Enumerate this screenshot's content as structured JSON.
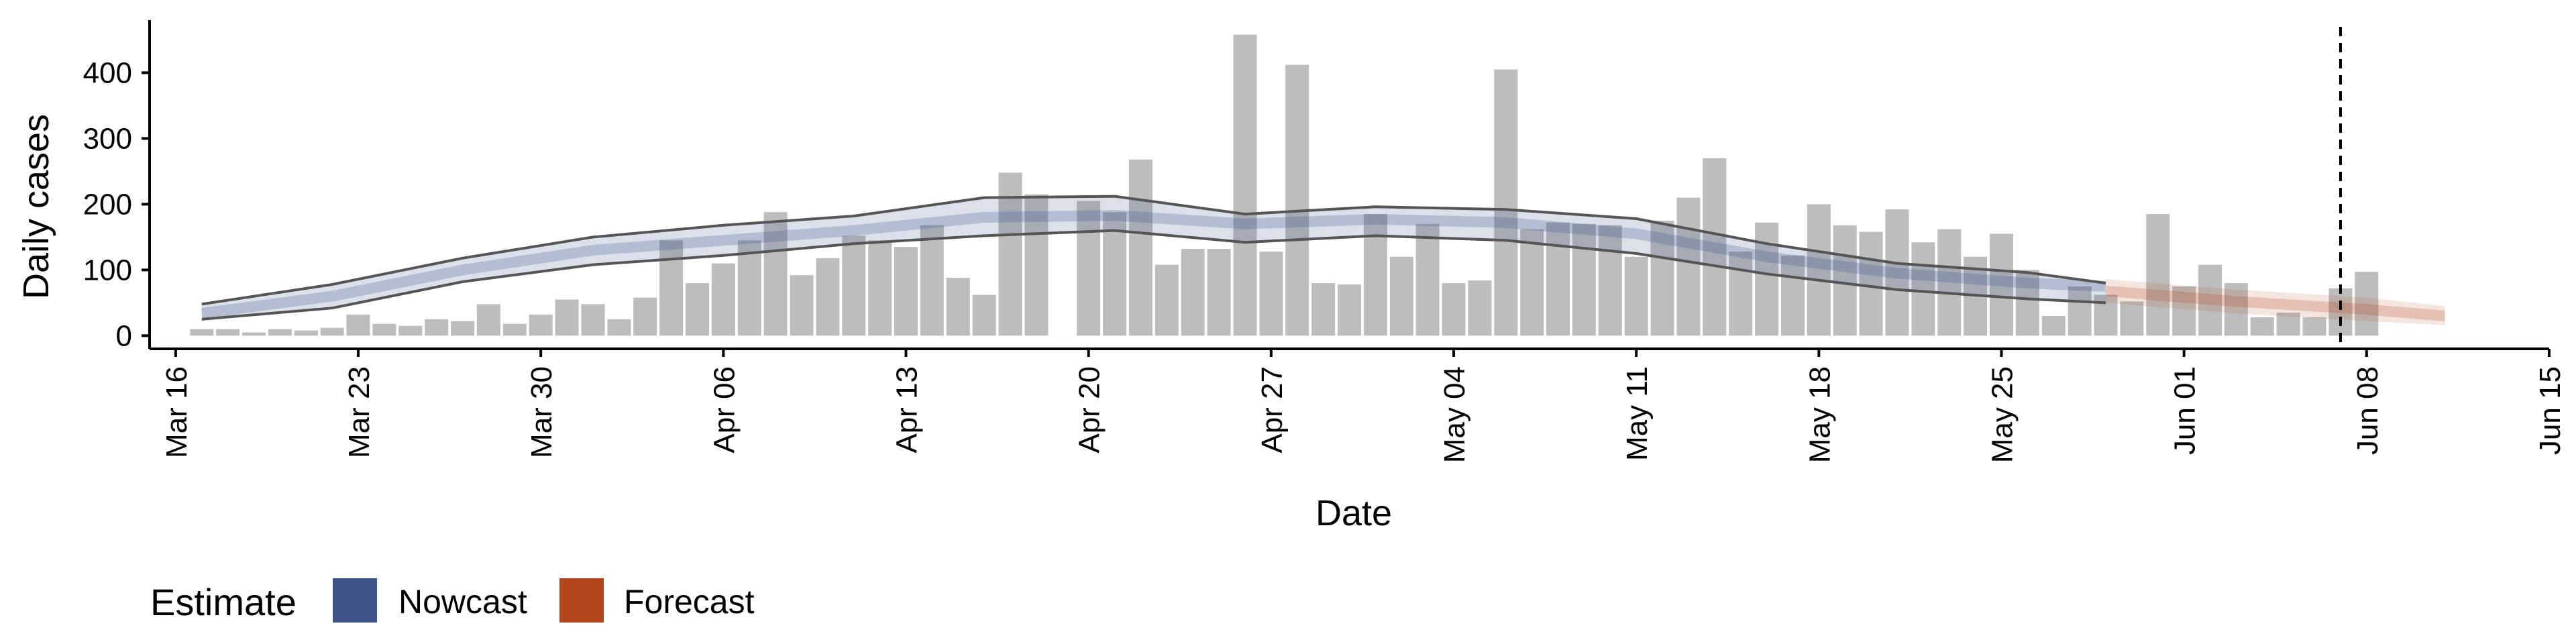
{
  "chart_data": {
    "type": "bar",
    "xlabel": "Date",
    "ylabel": "Daily cases",
    "x_axis_type": "date",
    "xlim": [
      "2020-03-15",
      "2020-06-15"
    ],
    "ylim": [
      -20,
      480
    ],
    "y_ticks": [
      0,
      100,
      200,
      300,
      400
    ],
    "x_ticks": [
      {
        "date": "2020-03-16",
        "label": "Mar 16"
      },
      {
        "date": "2020-03-23",
        "label": "Mar 23"
      },
      {
        "date": "2020-03-30",
        "label": "Mar 30"
      },
      {
        "date": "2020-04-06",
        "label": "Apr 06"
      },
      {
        "date": "2020-04-13",
        "label": "Apr 13"
      },
      {
        "date": "2020-04-20",
        "label": "Apr 20"
      },
      {
        "date": "2020-04-27",
        "label": "Apr 27"
      },
      {
        "date": "2020-05-04",
        "label": "May 04"
      },
      {
        "date": "2020-05-11",
        "label": "May 11"
      },
      {
        "date": "2020-05-18",
        "label": "May 18"
      },
      {
        "date": "2020-05-25",
        "label": "May 25"
      },
      {
        "date": "2020-06-01",
        "label": "Jun 01"
      },
      {
        "date": "2020-06-08",
        "label": "Jun 08"
      },
      {
        "date": "2020-06-15",
        "label": "Jun 15"
      }
    ],
    "grid": false,
    "legend_position": "bottom-left",
    "bars": {
      "start_date": "2020-03-17",
      "color": "#bdbdbd",
      "values": [
        10,
        10,
        5,
        10,
        8,
        12,
        32,
        18,
        15,
        25,
        22,
        48,
        18,
        32,
        55,
        48,
        25,
        58,
        145,
        80,
        110,
        145,
        188,
        92,
        118,
        152,
        145,
        135,
        168,
        88,
        62,
        248,
        215,
        0,
        205,
        188,
        268,
        108,
        132,
        132,
        458,
        128,
        412,
        80,
        78,
        185,
        120,
        170,
        80,
        84,
        405,
        162,
        172,
        170,
        168,
        120,
        175,
        210,
        270,
        128,
        172,
        122,
        200,
        168,
        158,
        192,
        142,
        162,
        120,
        155,
        100,
        30,
        75,
        62,
        52,
        185,
        75,
        108,
        80,
        28,
        35,
        28,
        72,
        97
      ]
    },
    "nowcast": {
      "name": "Nowcast",
      "color": "#3c5488",
      "x": [
        "2020-03-17",
        "2020-03-22",
        "2020-03-27",
        "2020-04-01",
        "2020-04-06",
        "2020-04-11",
        "2020-04-16",
        "2020-04-21",
        "2020-04-26",
        "2020-05-01",
        "2020-05-06",
        "2020-05-11",
        "2020-05-16",
        "2020-05-21",
        "2020-05-26",
        "2020-05-29"
      ],
      "median": [
        34,
        60,
        100,
        130,
        145,
        160,
        180,
        183,
        170,
        177,
        172,
        155,
        120,
        95,
        80,
        75
      ],
      "lower_90": [
        25,
        42,
        82,
        108,
        122,
        140,
        152,
        160,
        142,
        152,
        145,
        125,
        94,
        70,
        56,
        50
      ],
      "upper_90": [
        48,
        78,
        118,
        150,
        168,
        182,
        210,
        212,
        185,
        196,
        192,
        178,
        140,
        110,
        96,
        80
      ]
    },
    "forecast": {
      "name": "Forecast",
      "color": "#b2451c",
      "x": [
        "2020-05-29",
        "2020-06-03",
        "2020-06-08",
        "2020-06-11"
      ],
      "median": [
        68,
        52,
        40,
        30
      ],
      "lower_90": [
        50,
        34,
        22,
        16
      ],
      "upper_90": [
        86,
        70,
        58,
        45
      ]
    },
    "reference_line": {
      "date": "2020-06-07",
      "style": "dashed"
    },
    "legend": {
      "title": "Estimate",
      "items": [
        {
          "label": "Nowcast",
          "color": "#3c5488"
        },
        {
          "label": "Forecast",
          "color": "#b2451c"
        }
      ]
    }
  }
}
